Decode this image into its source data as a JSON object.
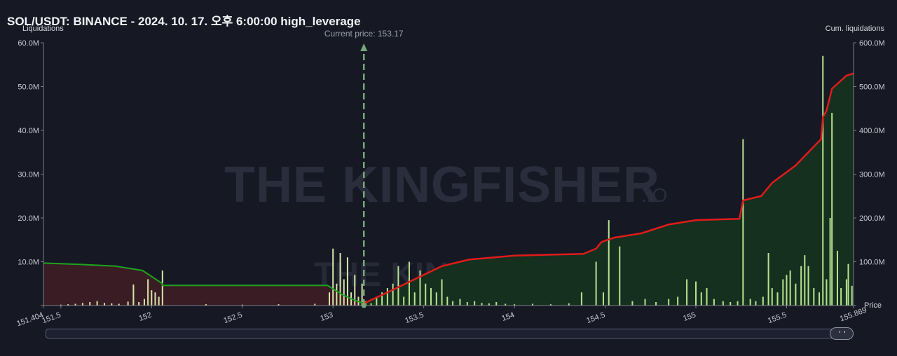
{
  "title": "SOL/USDT: BINANCE - 2024. 10. 17. 오후 6:00:00 high_leverage",
  "chart_data": {
    "type": "bar",
    "xlabel": "Price",
    "ylabel_left": "Liquidations",
    "ylabel_right": "Cum. liquidations",
    "xlim": [
      151.404,
      155.869
    ],
    "x_ticks": [
      151.404,
      151.5,
      152,
      152.5,
      153,
      153.5,
      154,
      154.5,
      155,
      155.5,
      155.869
    ],
    "x_tick_labels": [
      "151.404",
      "151.5",
      "152",
      "152.5",
      "153",
      "153.5",
      "154",
      "154.5",
      "155",
      "155.5",
      "155.869"
    ],
    "ylim_left": [
      0,
      60
    ],
    "y_left_ticks": [
      0,
      10,
      20,
      30,
      40,
      50,
      60
    ],
    "y_left_tick_labels": [
      "",
      "10.0M",
      "20.0M",
      "30.0M",
      "40.0M",
      "50.0M",
      "60.0M"
    ],
    "ylim_right": [
      0,
      600
    ],
    "y_right_ticks": [
      0,
      100,
      200,
      300,
      400,
      500,
      600
    ],
    "y_right_tick_labels": [
      "",
      "100.0M",
      "200.0M",
      "300.0M",
      "400.0M",
      "500.0M",
      "600.0M"
    ],
    "current_price": 153.17,
    "current_price_label": "Current price: 153.17",
    "watermark_main": "THE KINGFISHER",
    "watermark_suffix": ".IO",
    "bars": [
      {
        "x": 151.5,
        "y": 0.2
      },
      {
        "x": 151.54,
        "y": 0.3
      },
      {
        "x": 151.58,
        "y": 0.4
      },
      {
        "x": 151.62,
        "y": 0.6
      },
      {
        "x": 151.66,
        "y": 0.8
      },
      {
        "x": 151.7,
        "y": 1.0
      },
      {
        "x": 151.74,
        "y": 0.6
      },
      {
        "x": 151.78,
        "y": 0.5
      },
      {
        "x": 151.82,
        "y": 0.4
      },
      {
        "x": 151.87,
        "y": 0.9
      },
      {
        "x": 151.9,
        "y": 4.8
      },
      {
        "x": 151.93,
        "y": 0.8
      },
      {
        "x": 151.96,
        "y": 1.5
      },
      {
        "x": 151.98,
        "y": 6.0
      },
      {
        "x": 152.0,
        "y": 3.5
      },
      {
        "x": 152.02,
        "y": 3.0
      },
      {
        "x": 152.04,
        "y": 2.0
      },
      {
        "x": 152.06,
        "y": 8.0
      },
      {
        "x": 152.3,
        "y": 0.3
      },
      {
        "x": 152.5,
        "y": 0.2
      },
      {
        "x": 152.7,
        "y": 0.3
      },
      {
        "x": 152.9,
        "y": 0.4
      },
      {
        "x": 152.98,
        "y": 3.0
      },
      {
        "x": 153.0,
        "y": 13.0
      },
      {
        "x": 153.02,
        "y": 5.0
      },
      {
        "x": 153.04,
        "y": 12.0
      },
      {
        "x": 153.06,
        "y": 6.0
      },
      {
        "x": 153.08,
        "y": 11.0
      },
      {
        "x": 153.1,
        "y": 3.0
      },
      {
        "x": 153.12,
        "y": 7.0
      },
      {
        "x": 153.14,
        "y": 2.0
      },
      {
        "x": 153.16,
        "y": 5.0
      },
      {
        "x": 153.18,
        "y": 1.0
      },
      {
        "x": 153.21,
        "y": 0.5
      },
      {
        "x": 153.24,
        "y": 2.0
      },
      {
        "x": 153.27,
        "y": 3.0
      },
      {
        "x": 153.3,
        "y": 4.0
      },
      {
        "x": 153.33,
        "y": 5.0
      },
      {
        "x": 153.36,
        "y": 9.0
      },
      {
        "x": 153.39,
        "y": 2.0
      },
      {
        "x": 153.42,
        "y": 10.0
      },
      {
        "x": 153.45,
        "y": 3.0
      },
      {
        "x": 153.48,
        "y": 8.0
      },
      {
        "x": 153.51,
        "y": 5.0
      },
      {
        "x": 153.54,
        "y": 4.0
      },
      {
        "x": 153.57,
        "y": 3.0
      },
      {
        "x": 153.6,
        "y": 6.0
      },
      {
        "x": 153.63,
        "y": 2.0
      },
      {
        "x": 153.66,
        "y": 1.0
      },
      {
        "x": 153.7,
        "y": 1.5
      },
      {
        "x": 153.74,
        "y": 0.8
      },
      {
        "x": 153.78,
        "y": 1.0
      },
      {
        "x": 153.82,
        "y": 0.6
      },
      {
        "x": 153.86,
        "y": 0.5
      },
      {
        "x": 153.9,
        "y": 0.8
      },
      {
        "x": 153.95,
        "y": 0.4
      },
      {
        "x": 154.0,
        "y": 0.3
      },
      {
        "x": 154.1,
        "y": 0.4
      },
      {
        "x": 154.2,
        "y": 0.3
      },
      {
        "x": 154.3,
        "y": 0.5
      },
      {
        "x": 154.37,
        "y": 3.0
      },
      {
        "x": 154.45,
        "y": 10.0
      },
      {
        "x": 154.49,
        "y": 3.0
      },
      {
        "x": 154.52,
        "y": 19.5
      },
      {
        "x": 154.58,
        "y": 13.5
      },
      {
        "x": 154.65,
        "y": 1.0
      },
      {
        "x": 154.72,
        "y": 1.5
      },
      {
        "x": 154.78,
        "y": 0.8
      },
      {
        "x": 154.85,
        "y": 1.5
      },
      {
        "x": 154.9,
        "y": 2.0
      },
      {
        "x": 154.95,
        "y": 6.0
      },
      {
        "x": 155.0,
        "y": 5.5
      },
      {
        "x": 155.03,
        "y": 3.0
      },
      {
        "x": 155.06,
        "y": 4.0
      },
      {
        "x": 155.1,
        "y": 1.5
      },
      {
        "x": 155.15,
        "y": 1.0
      },
      {
        "x": 155.19,
        "y": 0.8
      },
      {
        "x": 155.23,
        "y": 1.0
      },
      {
        "x": 155.26,
        "y": 38.0
      },
      {
        "x": 155.3,
        "y": 1.5
      },
      {
        "x": 155.33,
        "y": 1.0
      },
      {
        "x": 155.37,
        "y": 2.0
      },
      {
        "x": 155.4,
        "y": 12.0
      },
      {
        "x": 155.42,
        "y": 4.0
      },
      {
        "x": 155.45,
        "y": 3.0
      },
      {
        "x": 155.48,
        "y": 6.0
      },
      {
        "x": 155.5,
        "y": 7.0
      },
      {
        "x": 155.52,
        "y": 8.0
      },
      {
        "x": 155.55,
        "y": 5.0
      },
      {
        "x": 155.58,
        "y": 9.0
      },
      {
        "x": 155.6,
        "y": 11.5
      },
      {
        "x": 155.62,
        "y": 9.0
      },
      {
        "x": 155.65,
        "y": 4.0
      },
      {
        "x": 155.68,
        "y": 3.0
      },
      {
        "x": 155.7,
        "y": 57.0
      },
      {
        "x": 155.72,
        "y": 6.0
      },
      {
        "x": 155.74,
        "y": 20.0
      },
      {
        "x": 155.75,
        "y": 44.0
      },
      {
        "x": 155.78,
        "y": 12.5
      },
      {
        "x": 155.8,
        "y": 4.0
      },
      {
        "x": 155.83,
        "y": 6.0
      },
      {
        "x": 155.84,
        "y": 9.5
      },
      {
        "x": 155.86,
        "y": 4.5
      }
    ],
    "short_cumulative": [
      {
        "x": 151.404,
        "y": 97
      },
      {
        "x": 151.6,
        "y": 94
      },
      {
        "x": 151.8,
        "y": 90
      },
      {
        "x": 151.95,
        "y": 80
      },
      {
        "x": 152.06,
        "y": 50
      },
      {
        "x": 152.06,
        "y": 46
      },
      {
        "x": 152.97,
        "y": 46
      },
      {
        "x": 153.05,
        "y": 25
      },
      {
        "x": 153.12,
        "y": 12
      },
      {
        "x": 153.17,
        "y": 5
      }
    ],
    "long_cumulative": [
      {
        "x": 153.17,
        "y": 5
      },
      {
        "x": 153.3,
        "y": 30
      },
      {
        "x": 153.45,
        "y": 60
      },
      {
        "x": 153.6,
        "y": 90
      },
      {
        "x": 153.75,
        "y": 105
      },
      {
        "x": 154.0,
        "y": 114
      },
      {
        "x": 154.38,
        "y": 118
      },
      {
        "x": 154.45,
        "y": 130
      },
      {
        "x": 154.48,
        "y": 145
      },
      {
        "x": 154.55,
        "y": 155
      },
      {
        "x": 154.7,
        "y": 165
      },
      {
        "x": 154.85,
        "y": 185
      },
      {
        "x": 155.0,
        "y": 195
      },
      {
        "x": 155.24,
        "y": 198
      },
      {
        "x": 155.26,
        "y": 240
      },
      {
        "x": 155.36,
        "y": 250
      },
      {
        "x": 155.42,
        "y": 280
      },
      {
        "x": 155.55,
        "y": 320
      },
      {
        "x": 155.62,
        "y": 350
      },
      {
        "x": 155.69,
        "y": 380
      },
      {
        "x": 155.7,
        "y": 430
      },
      {
        "x": 155.72,
        "y": 445
      },
      {
        "x": 155.75,
        "y": 495
      },
      {
        "x": 155.79,
        "y": 510
      },
      {
        "x": 155.83,
        "y": 525
      },
      {
        "x": 155.869,
        "y": 530
      }
    ],
    "colors": {
      "background": "#161824",
      "bar": "#d9e6a8",
      "bar_long": "#b7e48f",
      "short_line": "#1fa21f",
      "short_fill": "#3a1c24",
      "long_line": "#e01b1b",
      "long_fill": "#16301f",
      "current_price": "#78a878"
    }
  }
}
